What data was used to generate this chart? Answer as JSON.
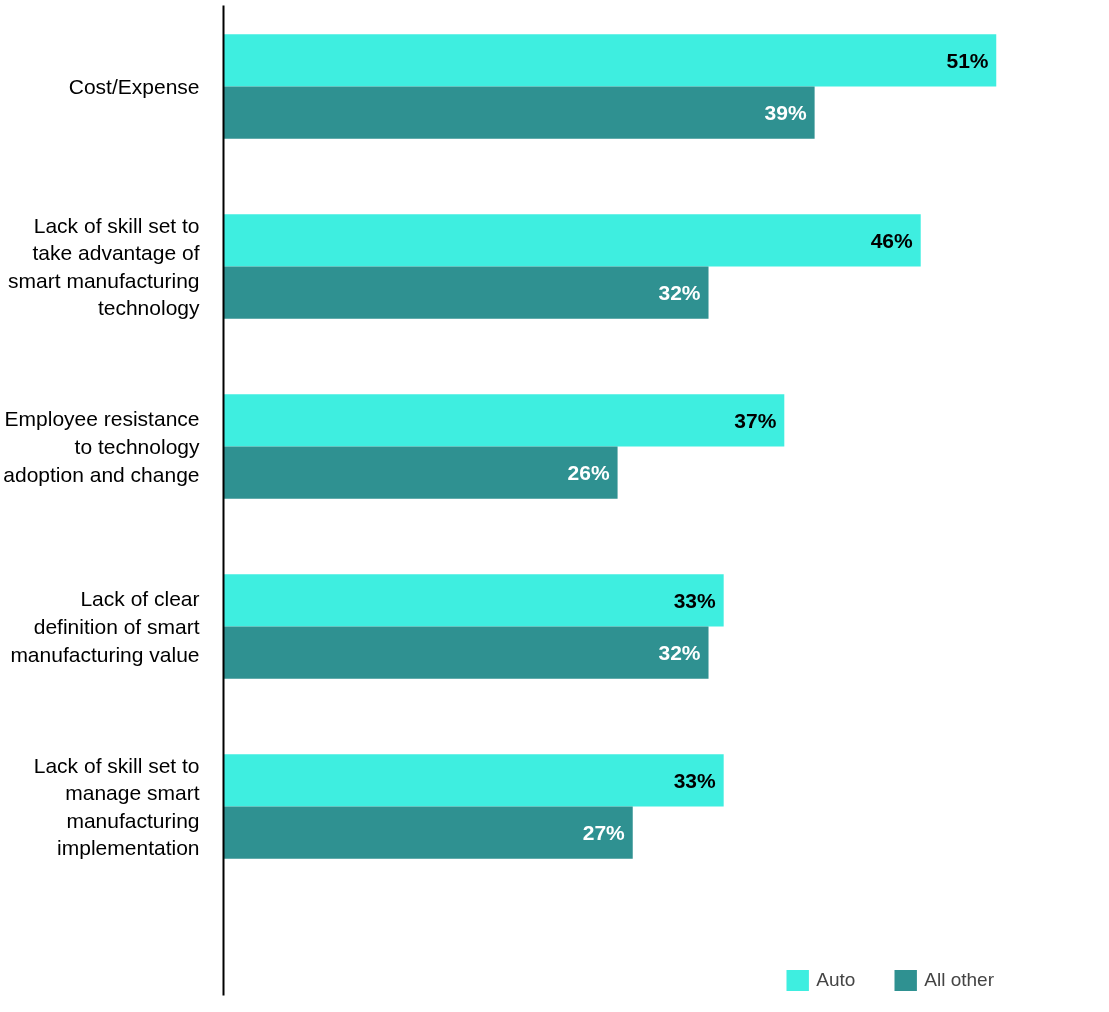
{
  "chart_data": {
    "type": "bar",
    "orientation": "horizontal",
    "categories": [
      "Cost/Expense",
      "Lack of skill set to take advantage of smart manufacturing technology",
      "Employee resistance to technology adoption and change",
      "Lack of clear definition of smart manufacturing value",
      "Lack of skill set to manage smart manufacturing implementation"
    ],
    "series": [
      {
        "name": "Auto",
        "color": "#3eeee0",
        "values": [
          51,
          46,
          37,
          33,
          33
        ],
        "value_labels": [
          "51%",
          "46%",
          "37%",
          "33%",
          "33%"
        ]
      },
      {
        "name": "All other",
        "color": "#2f9191",
        "values": [
          39,
          32,
          26,
          32,
          27
        ],
        "value_labels": [
          "39%",
          "32%",
          "26%",
          "32%",
          "27%"
        ]
      }
    ],
    "legend": "bottom right",
    "grid": false
  }
}
